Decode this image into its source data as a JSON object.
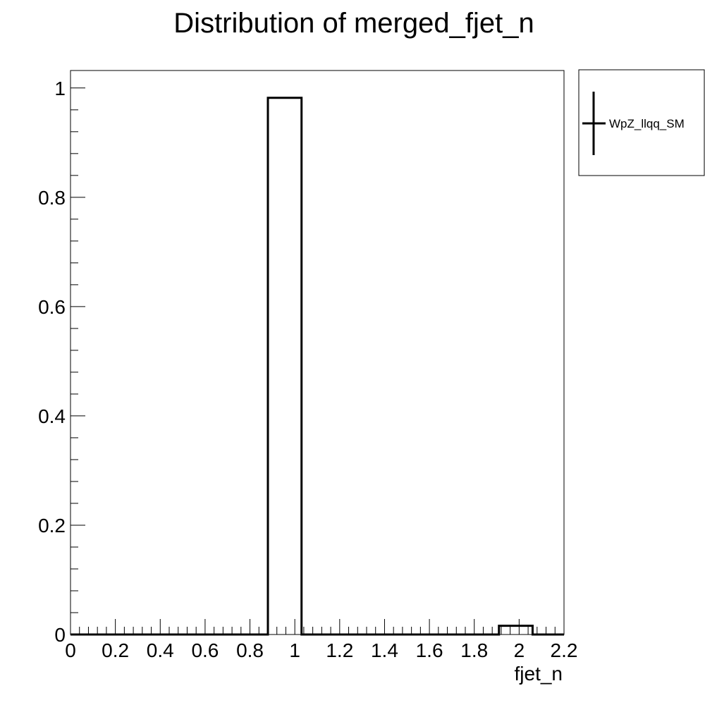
{
  "chart_data": {
    "type": "bar",
    "title": "Distribution of merged_fjet_n",
    "xlabel": "fjet_n",
    "ylabel": "",
    "xlim": [
      0,
      2.2
    ],
    "ylim": [
      0,
      1.0
    ],
    "x_ticks": [
      "0",
      "0.2",
      "0.4",
      "0.6",
      "0.8",
      "1",
      "1.2",
      "1.4",
      "1.6",
      "1.8",
      "2",
      "2.2"
    ],
    "y_ticks": [
      "0",
      "0.2",
      "0.4",
      "0.6",
      "0.8",
      "1"
    ],
    "grid": false,
    "legend_position": "outside-right-top",
    "series": [
      {
        "name": "WpZ_llqq_SM",
        "color": "#000000",
        "bins": [
          {
            "x0": 0.0,
            "x1": 0.88,
            "value": 0.0
          },
          {
            "x0": 0.88,
            "x1": 1.03,
            "value": 0.982
          },
          {
            "x0": 1.03,
            "x1": 1.91,
            "value": 0.0
          },
          {
            "x0": 1.91,
            "x1": 2.06,
            "value": 0.016
          },
          {
            "x0": 2.06,
            "x1": 2.2,
            "value": 0.0
          }
        ]
      }
    ]
  }
}
